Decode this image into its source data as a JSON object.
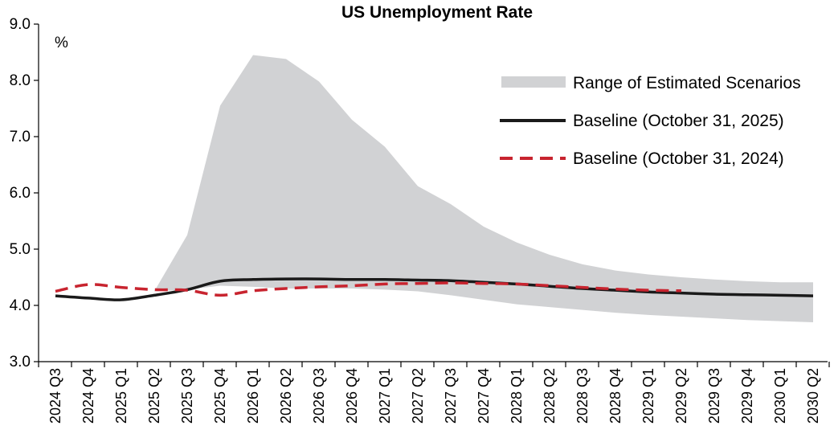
{
  "chart_data": {
    "type": "line",
    "title": "US Unemployment Rate",
    "ylabel": "%",
    "xlabel": "",
    "ylim": [
      3.0,
      9.0
    ],
    "yticks": [
      "3.0",
      "4.0",
      "5.0",
      "6.0",
      "7.0",
      "8.0",
      "9.0"
    ],
    "categories": [
      "2024 Q3",
      "2024 Q4",
      "2025 Q1",
      "2025 Q2",
      "2025 Q3",
      "2025 Q4",
      "2026 Q1",
      "2026 Q2",
      "2026 Q3",
      "2026 Q4",
      "2027 Q1",
      "2027 Q2",
      "2027 Q3",
      "2027 Q4",
      "2028 Q1",
      "2028 Q2",
      "2028 Q3",
      "2028 Q4",
      "2029 Q1",
      "2029 Q2",
      "2029 Q3",
      "2029 Q4",
      "2030 Q1",
      "2030 Q2"
    ],
    "grid": false,
    "legend_position": "top-right",
    "band": {
      "name": "Range of Estimated Scenarios",
      "color": "#d1d2d4",
      "start_index": 3,
      "upper": [
        4.25,
        5.25,
        7.55,
        8.45,
        8.38,
        7.98,
        7.3,
        6.82,
        6.12,
        5.8,
        5.4,
        5.12,
        4.9,
        4.73,
        4.62,
        4.55,
        4.5,
        4.46,
        4.43,
        4.41,
        4.41
      ],
      "lower": [
        4.25,
        4.28,
        4.35,
        4.33,
        4.3,
        4.3,
        4.3,
        4.28,
        4.25,
        4.18,
        4.1,
        4.02,
        3.97,
        3.92,
        3.87,
        3.83,
        3.8,
        3.77,
        3.74,
        3.72,
        3.7
      ]
    },
    "series": [
      {
        "name": "Baseline (October 31, 2025)",
        "color": "#1a1a1a",
        "dash": "solid",
        "values": [
          4.17,
          4.13,
          4.1,
          4.18,
          4.28,
          4.43,
          4.46,
          4.47,
          4.47,
          4.46,
          4.46,
          4.45,
          4.44,
          4.41,
          4.38,
          4.34,
          4.3,
          4.27,
          4.24,
          4.22,
          4.2,
          4.19,
          4.18,
          4.17
        ]
      },
      {
        "name": "Baseline (October 31, 2024)",
        "color": "#c8242f",
        "dash": "dashed",
        "values": [
          4.25,
          4.37,
          4.32,
          4.28,
          4.27,
          4.18,
          4.26,
          4.3,
          4.33,
          4.35,
          4.38,
          4.39,
          4.4,
          4.39,
          4.38,
          4.35,
          4.32,
          4.29,
          4.27,
          4.26,
          null,
          null,
          null,
          null
        ]
      }
    ]
  }
}
